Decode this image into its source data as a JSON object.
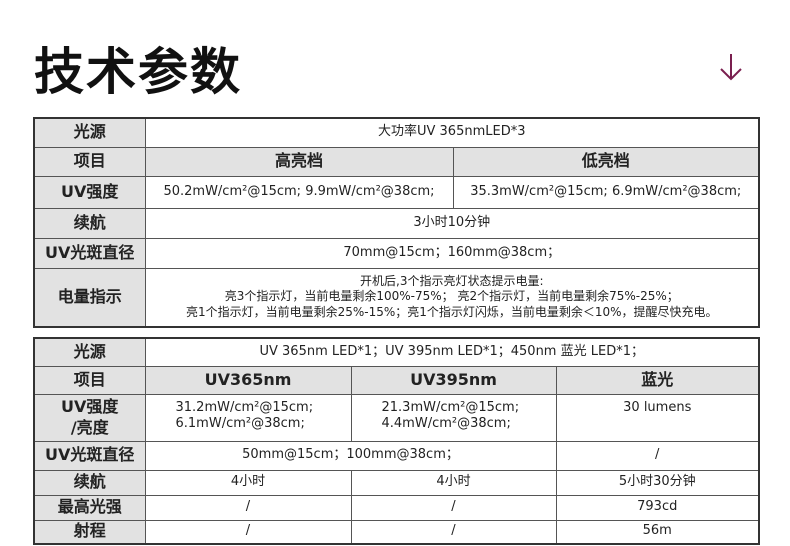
{
  "title": "技术参数",
  "accent": "#7a1f4f",
  "table1": {
    "light_source_label": "光源",
    "light_source": "大功率UV 365nmLED*3",
    "item_label": "项目",
    "high": "高亮档",
    "low": "低亮档",
    "uv_label": "UV强度",
    "uv_high": "50.2mW/cm²@15cm; 9.9mW/cm²@38cm;",
    "uv_low": "35.3mW/cm²@15cm; 6.9mW/cm²@38cm;",
    "runtime_label": "续航",
    "runtime": "3小时10分钟",
    "spot_label": "UV光斑直径",
    "spot": "70mm@15cm；160mm@38cm；",
    "battery_label": "电量指示",
    "battery_lines": [
      "开机后,3个指示亮灯状态提示电量:",
      "亮3个指示灯，当前电量剩余100%-75%； 亮2个指示灯，当前电量剩余75%-25%；",
      "亮1个指示灯，当前电量剩余25%-15%；亮1个指示灯闪烁，当前电量剩余＜10%，提醒尽快充电。"
    ]
  },
  "table2": {
    "light_source_label": "光源",
    "light_source": "UV 365nm LED*1；UV 395nm LED*1；450nm 蓝光 LED*1；",
    "item_label": "项目",
    "cols": [
      "UV365nm",
      "UV395nm",
      "蓝光"
    ],
    "uv_label": [
      "UV强度",
      "/亮度"
    ],
    "uv365": [
      "31.2mW/cm²@15cm;",
      "6.1mW/cm²@38cm;"
    ],
    "uv395": [
      "21.3mW/cm²@15cm;",
      "4.4mW/cm²@38cm;"
    ],
    "blue_brightness": "30 lumens",
    "spot_label": "UV光斑直径",
    "spot_uv": "50mm@15cm；100mm@38cm；",
    "spot_blue": "/",
    "runtime_label": "续航",
    "runtime": [
      "4小时",
      "4小时",
      "5小时30分钟"
    ],
    "max_intensity_label": "最高光强",
    "max_intensity": [
      "/",
      "/",
      "793cd"
    ],
    "range_label": "射程",
    "range": [
      "/",
      "/",
      "56m"
    ]
  }
}
